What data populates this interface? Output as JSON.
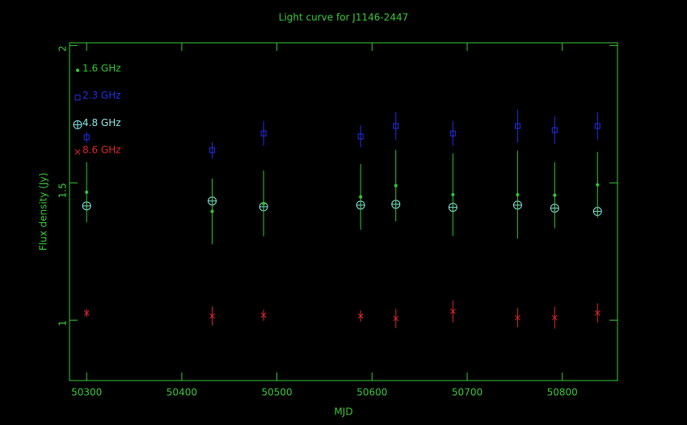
{
  "chart_data": {
    "type": "scatter",
    "title": "Light curve for J1146-2447",
    "x_label": "MJD",
    "y_label": "Flux density (Jy)",
    "xlim": [
      50282,
      50858
    ],
    "xticks": [
      50300,
      50400,
      50500,
      50600,
      50700,
      50800
    ],
    "ylim": [
      0.78,
      2.01
    ],
    "yticks": [
      1,
      1.5,
      2
    ],
    "axis_color": "#3cc83c",
    "legend": "upper left",
    "x": [
      50300,
      50432,
      50486,
      50588,
      50625,
      50685,
      50753,
      50792,
      50837
    ],
    "series": [
      {
        "name": "8.6 GHz",
        "color": "#e02828",
        "marker": "x",
        "values": [
          1.026,
          1.015,
          1.018,
          1.015,
          1.006,
          1.032,
          1.009,
          1.009,
          1.026
        ],
        "errors": [
          0.015,
          0.035,
          0.02,
          0.02,
          0.035,
          0.04,
          0.035,
          0.04,
          0.035
        ]
      },
      {
        "name": "4.8 GHz",
        "color": "#8ce6e6",
        "marker": "circle",
        "values": [
          1.416,
          1.434,
          1.413,
          1.419,
          1.422,
          1.411,
          1.419,
          1.408,
          1.396
        ]
      },
      {
        "name": "2.3 GHz",
        "color": "#2030e6",
        "marker": "square",
        "values": [
          1.666,
          1.619,
          1.68,
          1.669,
          1.707,
          1.68,
          1.707,
          1.692,
          1.707
        ],
        "errors": [
          0.02,
          0.03,
          0.045,
          0.04,
          0.05,
          0.045,
          0.06,
          0.05,
          0.05
        ]
      },
      {
        "name": "1.6 GHz",
        "color": "#30c830",
        "marker": "dot",
        "values": [
          1.466,
          1.396,
          1.425,
          1.449,
          1.49,
          1.457,
          1.457,
          1.455,
          1.493
        ],
        "errors": [
          0.11,
          0.12,
          0.12,
          0.12,
          0.13,
          0.15,
          0.16,
          0.12,
          0.12
        ]
      }
    ]
  }
}
